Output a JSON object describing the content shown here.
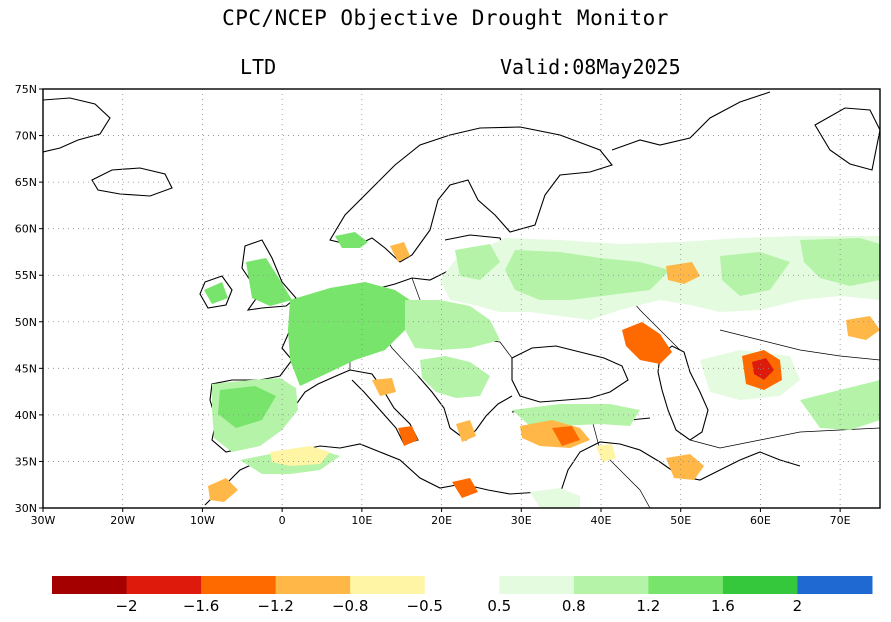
{
  "header": {
    "title": "CPC/NCEP Objective Drought Monitor",
    "index_label": "LTD",
    "valid_label": "Valid:08May2025"
  },
  "map": {
    "lon_range": [
      -30,
      75
    ],
    "lat_range": [
      30,
      75
    ],
    "lat_ticks": [
      {
        "value": 30,
        "label": "30N"
      },
      {
        "value": 35,
        "label": "35N"
      },
      {
        "value": 40,
        "label": "40N"
      },
      {
        "value": 45,
        "label": "45N"
      },
      {
        "value": 50,
        "label": "50N"
      },
      {
        "value": 55,
        "label": "55N"
      },
      {
        "value": 60,
        "label": "60N"
      },
      {
        "value": 65,
        "label": "65N"
      },
      {
        "value": 70,
        "label": "70N"
      },
      {
        "value": 75,
        "label": "75N"
      }
    ],
    "lon_ticks": [
      {
        "value": -30,
        "label": "30W"
      },
      {
        "value": -20,
        "label": "20W"
      },
      {
        "value": -10,
        "label": "10W"
      },
      {
        "value": 0,
        "label": "0"
      },
      {
        "value": 10,
        "label": "10E"
      },
      {
        "value": 20,
        "label": "20E"
      },
      {
        "value": 30,
        "label": "30E"
      },
      {
        "value": 40,
        "label": "40E"
      },
      {
        "value": 50,
        "label": "50E"
      },
      {
        "value": 60,
        "label": "60E"
      },
      {
        "value": 70,
        "label": "70E"
      }
    ]
  },
  "legend": {
    "colors": [
      "#a50000",
      "#dd1a0b",
      "#ff6a00",
      "#ffb847",
      "#fff5a5",
      "#ffffff",
      "#e4fbe0",
      "#b4f3a8",
      "#78e46c",
      "#35c73c",
      "#1e6ad2"
    ],
    "labels": [
      "−2",
      "−1.6",
      "−1.2",
      "−0.8",
      "−0.5",
      "0.5",
      "0.8",
      "1.2",
      "1.6",
      "2"
    ]
  },
  "colors": {
    "wet_light": "#e4fbe0",
    "wet_moderate": "#b4f3a8",
    "wet_strong": "#78e46c",
    "wet_severe": "#35c73c",
    "dry_light": "#fff5a5",
    "dry_moderate": "#ffb847",
    "dry_strong": "#ff6a00",
    "dry_severe": "#dd1a0b"
  }
}
